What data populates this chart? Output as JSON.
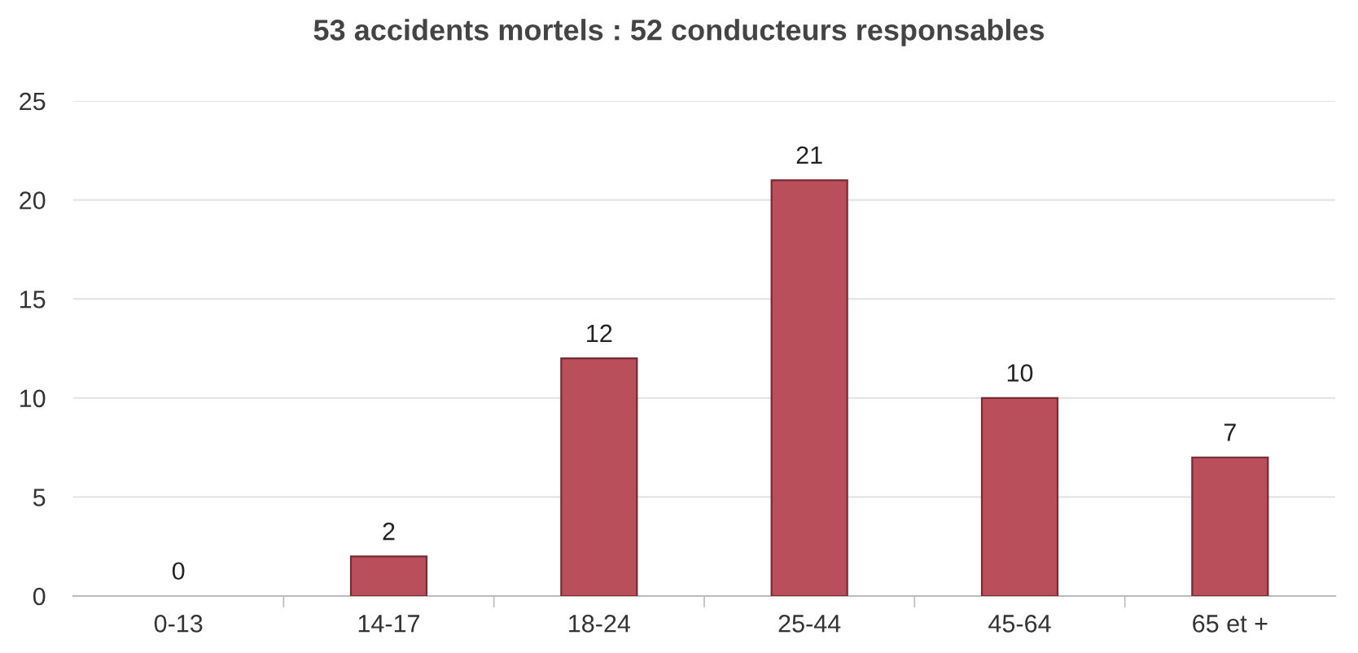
{
  "chart_data": {
    "type": "bar",
    "title": "53 accidents mortels : 52 conducteurs responsables",
    "categories": [
      "0-13",
      "14-17",
      "18-24",
      "25-44",
      "45-64",
      "65 et +"
    ],
    "values": [
      0,
      2,
      12,
      21,
      10,
      7
    ],
    "color": "#b84f5a",
    "ylim": [
      0,
      25
    ],
    "yticks": [
      0,
      5,
      10,
      15,
      20,
      25
    ],
    "grid": "y",
    "data_labels": true
  }
}
